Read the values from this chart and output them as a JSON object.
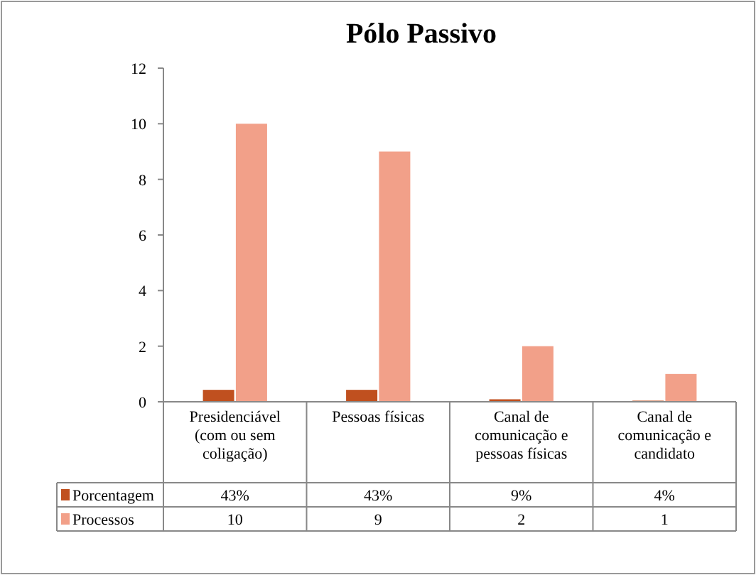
{
  "chart_data": {
    "type": "bar",
    "title": "Pólo Passivo",
    "categories": [
      "Presidenciável (com ou sem coligação)",
      "Pessoas físicas",
      "Canal de comunicação e pessoas físicas",
      "Canal de comunicação e candidato"
    ],
    "series": [
      {
        "name": "Porcentagem",
        "color": "#c0501f",
        "values": [
          0.43,
          0.43,
          0.09,
          0.04
        ],
        "value_labels": [
          "43%",
          "43%",
          "9%",
          "4%"
        ]
      },
      {
        "name": "Processos",
        "color": "#f2a089",
        "values": [
          10,
          9,
          2,
          1
        ],
        "value_labels": [
          "10",
          "9",
          "2",
          "1"
        ]
      }
    ],
    "ylim": [
      0,
      12
    ],
    "yticks": [
      0,
      2,
      4,
      6,
      8,
      10,
      12
    ],
    "grid": false,
    "legend": "bottom"
  }
}
